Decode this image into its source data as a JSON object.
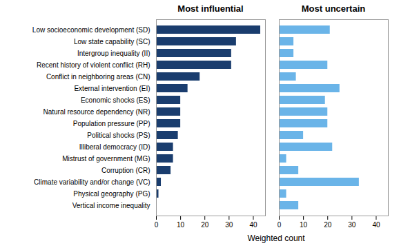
{
  "chart_data": {
    "type": "bar",
    "orientation": "horizontal",
    "xlabel": "Weighted count",
    "categories": [
      "Low socioeconomic development (SD)",
      "Low state capability (SC)",
      "Intergroup inequality (II)",
      "Recent history of violent conflict (RH)",
      "Conflict in neighboring areas (CN)",
      "External intervention (EI)",
      "Economic shocks (ES)",
      "Natural resource dependency (NR)",
      "Population pressure (PP)",
      "Political shocks (PS)",
      "Illiberal democracy (ID)",
      "Mistrust of government (MG)",
      "Corruption (CR)",
      "Climate variability and/or change (VC)",
      "Physical geography (PG)",
      "Vertical income inequality"
    ],
    "series": [
      {
        "name": "Most influential",
        "color": "#1a3d6e",
        "values": [
          43,
          33,
          31,
          31,
          18,
          13,
          10,
          10,
          10,
          9,
          7,
          7,
          6,
          2,
          1,
          0
        ]
      },
      {
        "name": "Most uncertain",
        "color": "#6ab4e8",
        "values": [
          21,
          6,
          6,
          20,
          7,
          25,
          19,
          20,
          20,
          10,
          22,
          3,
          8,
          33,
          3,
          8
        ]
      }
    ],
    "xlim": [
      0,
      45
    ],
    "xticks": [
      0,
      10,
      20,
      30,
      40
    ]
  }
}
